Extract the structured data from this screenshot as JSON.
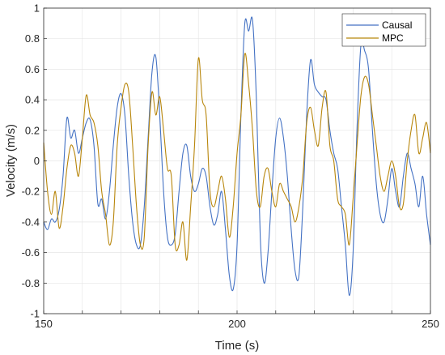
{
  "chart_data": {
    "type": "line",
    "title": "",
    "xlabel": "Time (s)",
    "ylabel": "Velocity (m/s)",
    "xlim": [
      150,
      250
    ],
    "ylim": [
      -1,
      1
    ],
    "x_ticks": [
      "150",
      "200",
      "250"
    ],
    "y_ticks": [
      "-1",
      "-0.8",
      "-0.6",
      "-0.4",
      "-0.2",
      "0",
      "0.2",
      "0.4",
      "0.6",
      "0.8",
      "1"
    ],
    "grid": true,
    "legend_position": "top-right",
    "series": [
      {
        "name": "Causal",
        "color": "#4472C4",
        "points": [
          [
            150,
            -0.4
          ],
          [
            151,
            -0.45
          ],
          [
            152,
            -0.38
          ],
          [
            153,
            -0.4
          ],
          [
            154,
            -0.32
          ],
          [
            155,
            -0.1
          ],
          [
            156,
            0.28
          ],
          [
            157,
            0.15
          ],
          [
            158,
            0.2
          ],
          [
            159,
            0.05
          ],
          [
            160,
            0.15
          ],
          [
            161,
            0.25
          ],
          [
            162,
            0.27
          ],
          [
            163,
            0.1
          ],
          [
            164,
            -0.28
          ],
          [
            165,
            -0.25
          ],
          [
            166,
            -0.38
          ],
          [
            167,
            -0.2
          ],
          [
            168,
            0.1
          ],
          [
            169,
            0.35
          ],
          [
            170,
            0.44
          ],
          [
            171,
            0.3
          ],
          [
            172,
            -0.1
          ],
          [
            173,
            -0.4
          ],
          [
            174,
            -0.55
          ],
          [
            175,
            -0.55
          ],
          [
            176,
            -0.3
          ],
          [
            177,
            0.15
          ],
          [
            178,
            0.58
          ],
          [
            179,
            0.68
          ],
          [
            180,
            0.3
          ],
          [
            181,
            -0.2
          ],
          [
            182,
            -0.5
          ],
          [
            183,
            -0.55
          ],
          [
            184,
            -0.48
          ],
          [
            185,
            -0.2
          ],
          [
            186,
            0.05
          ],
          [
            187,
            0.1
          ],
          [
            188,
            -0.1
          ],
          [
            189,
            -0.2
          ],
          [
            190,
            -0.15
          ],
          [
            191,
            -0.05
          ],
          [
            192,
            -0.1
          ],
          [
            193,
            -0.3
          ],
          [
            194,
            -0.42
          ],
          [
            195,
            -0.35
          ],
          [
            196,
            -0.2
          ],
          [
            197,
            -0.45
          ],
          [
            198,
            -0.75
          ],
          [
            199,
            -0.84
          ],
          [
            200,
            -0.55
          ],
          [
            201,
            0.3
          ],
          [
            202,
            0.9
          ],
          [
            203,
            0.85
          ],
          [
            204,
            0.92
          ],
          [
            205,
            0.4
          ],
          [
            206,
            -0.5
          ],
          [
            207,
            -0.8
          ],
          [
            208,
            -0.6
          ],
          [
            209,
            -0.2
          ],
          [
            210,
            0.15
          ],
          [
            211,
            0.28
          ],
          [
            212,
            0.15
          ],
          [
            213,
            -0.1
          ],
          [
            214,
            -0.45
          ],
          [
            215,
            -0.72
          ],
          [
            216,
            -0.75
          ],
          [
            217,
            -0.3
          ],
          [
            218,
            0.3
          ],
          [
            219,
            0.66
          ],
          [
            220,
            0.5
          ],
          [
            221,
            0.45
          ],
          [
            222,
            0.42
          ],
          [
            223,
            0.4
          ],
          [
            224,
            0.2
          ],
          [
            225,
            0.05
          ],
          [
            226,
            -0.05
          ],
          [
            227,
            -0.3
          ],
          [
            228,
            -0.55
          ],
          [
            229,
            -0.88
          ],
          [
            230,
            -0.6
          ],
          [
            231,
            0.2
          ],
          [
            232,
            0.75
          ],
          [
            233,
            0.72
          ],
          [
            234,
            0.6
          ],
          [
            235,
            0.2
          ],
          [
            236,
            -0.15
          ],
          [
            237,
            -0.35
          ],
          [
            238,
            -0.4
          ],
          [
            239,
            -0.25
          ],
          [
            240,
            -0.05
          ],
          [
            241,
            -0.2
          ],
          [
            242,
            -0.3
          ],
          [
            243,
            -0.1
          ],
          [
            244,
            0.05
          ],
          [
            245,
            -0.05
          ],
          [
            246,
            -0.15
          ],
          [
            247,
            -0.3
          ],
          [
            248,
            -0.1
          ],
          [
            249,
            -0.35
          ],
          [
            250,
            -0.55
          ]
        ]
      },
      {
        "name": "MPC",
        "color": "#B8860B",
        "points": [
          [
            150,
            0.12
          ],
          [
            151,
            -0.2
          ],
          [
            152,
            -0.35
          ],
          [
            153,
            -0.2
          ],
          [
            154,
            -0.44
          ],
          [
            155,
            -0.3
          ],
          [
            156,
            -0.05
          ],
          [
            157,
            0.1
          ],
          [
            158,
            0.05
          ],
          [
            159,
            -0.1
          ],
          [
            160,
            0.15
          ],
          [
            161,
            0.43
          ],
          [
            162,
            0.3
          ],
          [
            163,
            0.25
          ],
          [
            164,
            0.1
          ],
          [
            165,
            -0.2
          ],
          [
            166,
            -0.35
          ],
          [
            167,
            -0.55
          ],
          [
            168,
            -0.4
          ],
          [
            169,
            0.1
          ],
          [
            170,
            0.35
          ],
          [
            171,
            0.5
          ],
          [
            172,
            0.45
          ],
          [
            173,
            0.1
          ],
          [
            174,
            -0.3
          ],
          [
            175,
            -0.55
          ],
          [
            176,
            -0.5
          ],
          [
            177,
            0.1
          ],
          [
            178,
            0.45
          ],
          [
            179,
            0.3
          ],
          [
            180,
            0.42
          ],
          [
            181,
            0.2
          ],
          [
            182,
            -0.05
          ],
          [
            183,
            -0.1
          ],
          [
            184,
            -0.55
          ],
          [
            185,
            -0.55
          ],
          [
            186,
            -0.4
          ],
          [
            187,
            -0.65
          ],
          [
            188,
            -0.3
          ],
          [
            189,
            0.1
          ],
          [
            190,
            0.67
          ],
          [
            191,
            0.4
          ],
          [
            192,
            0.3
          ],
          [
            193,
            -0.2
          ],
          [
            194,
            -0.3
          ],
          [
            195,
            -0.2
          ],
          [
            196,
            -0.1
          ],
          [
            197,
            -0.25
          ],
          [
            198,
            -0.5
          ],
          [
            199,
            -0.3
          ],
          [
            200,
            0.05
          ],
          [
            201,
            0.3
          ],
          [
            202,
            0.7
          ],
          [
            203,
            0.5
          ],
          [
            204,
            0.2
          ],
          [
            205,
            -0.2
          ],
          [
            206,
            -0.3
          ],
          [
            207,
            -0.1
          ],
          [
            208,
            -0.05
          ],
          [
            209,
            -0.2
          ],
          [
            210,
            -0.3
          ],
          [
            211,
            -0.15
          ],
          [
            212,
            -0.2
          ],
          [
            213,
            -0.25
          ],
          [
            214,
            -0.3
          ],
          [
            215,
            -0.4
          ],
          [
            216,
            -0.3
          ],
          [
            217,
            -0.1
          ],
          [
            218,
            0.25
          ],
          [
            219,
            0.35
          ],
          [
            220,
            0.2
          ],
          [
            221,
            0.1
          ],
          [
            222,
            0.35
          ],
          [
            223,
            0.45
          ],
          [
            224,
            0.1
          ],
          [
            225,
            0.0
          ],
          [
            226,
            -0.25
          ],
          [
            227,
            -0.3
          ],
          [
            228,
            -0.35
          ],
          [
            229,
            -0.55
          ],
          [
            230,
            -0.25
          ],
          [
            231,
            0.1
          ],
          [
            232,
            0.42
          ],
          [
            233,
            0.55
          ],
          [
            234,
            0.5
          ],
          [
            235,
            0.3
          ],
          [
            236,
            0.1
          ],
          [
            237,
            -0.1
          ],
          [
            238,
            -0.2
          ],
          [
            239,
            -0.1
          ],
          [
            240,
            0.0
          ],
          [
            241,
            -0.1
          ],
          [
            242,
            -0.3
          ],
          [
            243,
            -0.28
          ],
          [
            244,
            0.0
          ],
          [
            245,
            0.2
          ],
          [
            246,
            0.3
          ],
          [
            247,
            0.05
          ],
          [
            248,
            0.15
          ],
          [
            249,
            0.25
          ],
          [
            250,
            0.05
          ]
        ]
      }
    ]
  }
}
